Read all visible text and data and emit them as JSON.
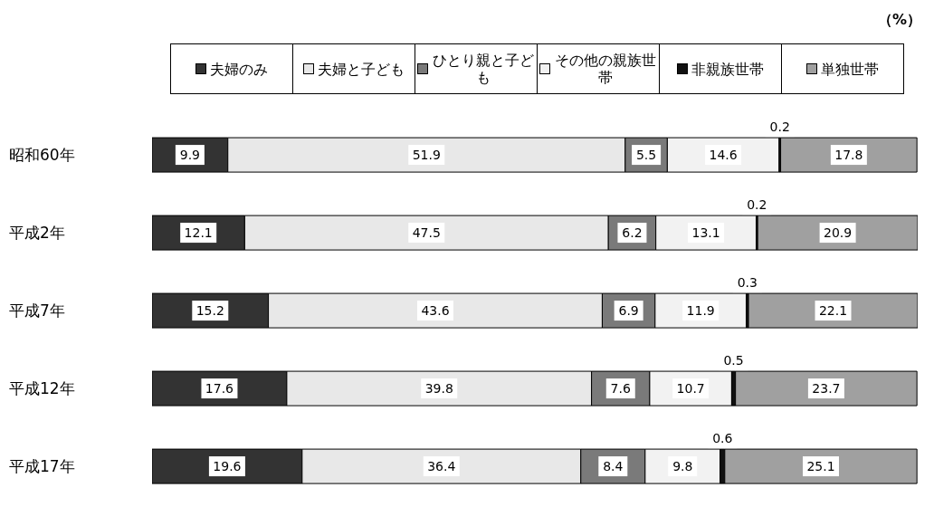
{
  "chart_data": {
    "type": "bar",
    "orientation": "horizontal",
    "stacked": true,
    "data_labels": true,
    "legend": "top",
    "categories": [
      "昭和60年",
      "平成2年",
      "平成7年",
      "平成12年",
      "平成17年"
    ],
    "annotations": [
      "（%）"
    ],
    "series": [
      {
        "name": "夫婦のみ",
        "color": "#333333",
        "values": [
          9.9,
          12.1,
          15.2,
          17.6,
          19.6
        ]
      },
      {
        "name": "夫婦と子ども",
        "color": "#e8e8e8",
        "values": [
          51.9,
          47.5,
          43.6,
          39.8,
          36.4
        ]
      },
      {
        "name": "ひとり親と子ども",
        "color": "#7a7a7a",
        "values": [
          5.5,
          6.2,
          6.9,
          7.6,
          8.4
        ]
      },
      {
        "name": "その他の親族世帯",
        "color": "#f2f2f2",
        "values": [
          14.6,
          13.1,
          11.9,
          10.7,
          9.8
        ]
      },
      {
        "name": "非親族世帯",
        "color": "#111111",
        "values": [
          0.2,
          0.2,
          0.3,
          0.5,
          0.6
        ]
      },
      {
        "name": "単独世帯",
        "color": "#a0a0a0",
        "values": [
          17.8,
          20.9,
          22.1,
          23.7,
          25.1
        ]
      }
    ]
  }
}
